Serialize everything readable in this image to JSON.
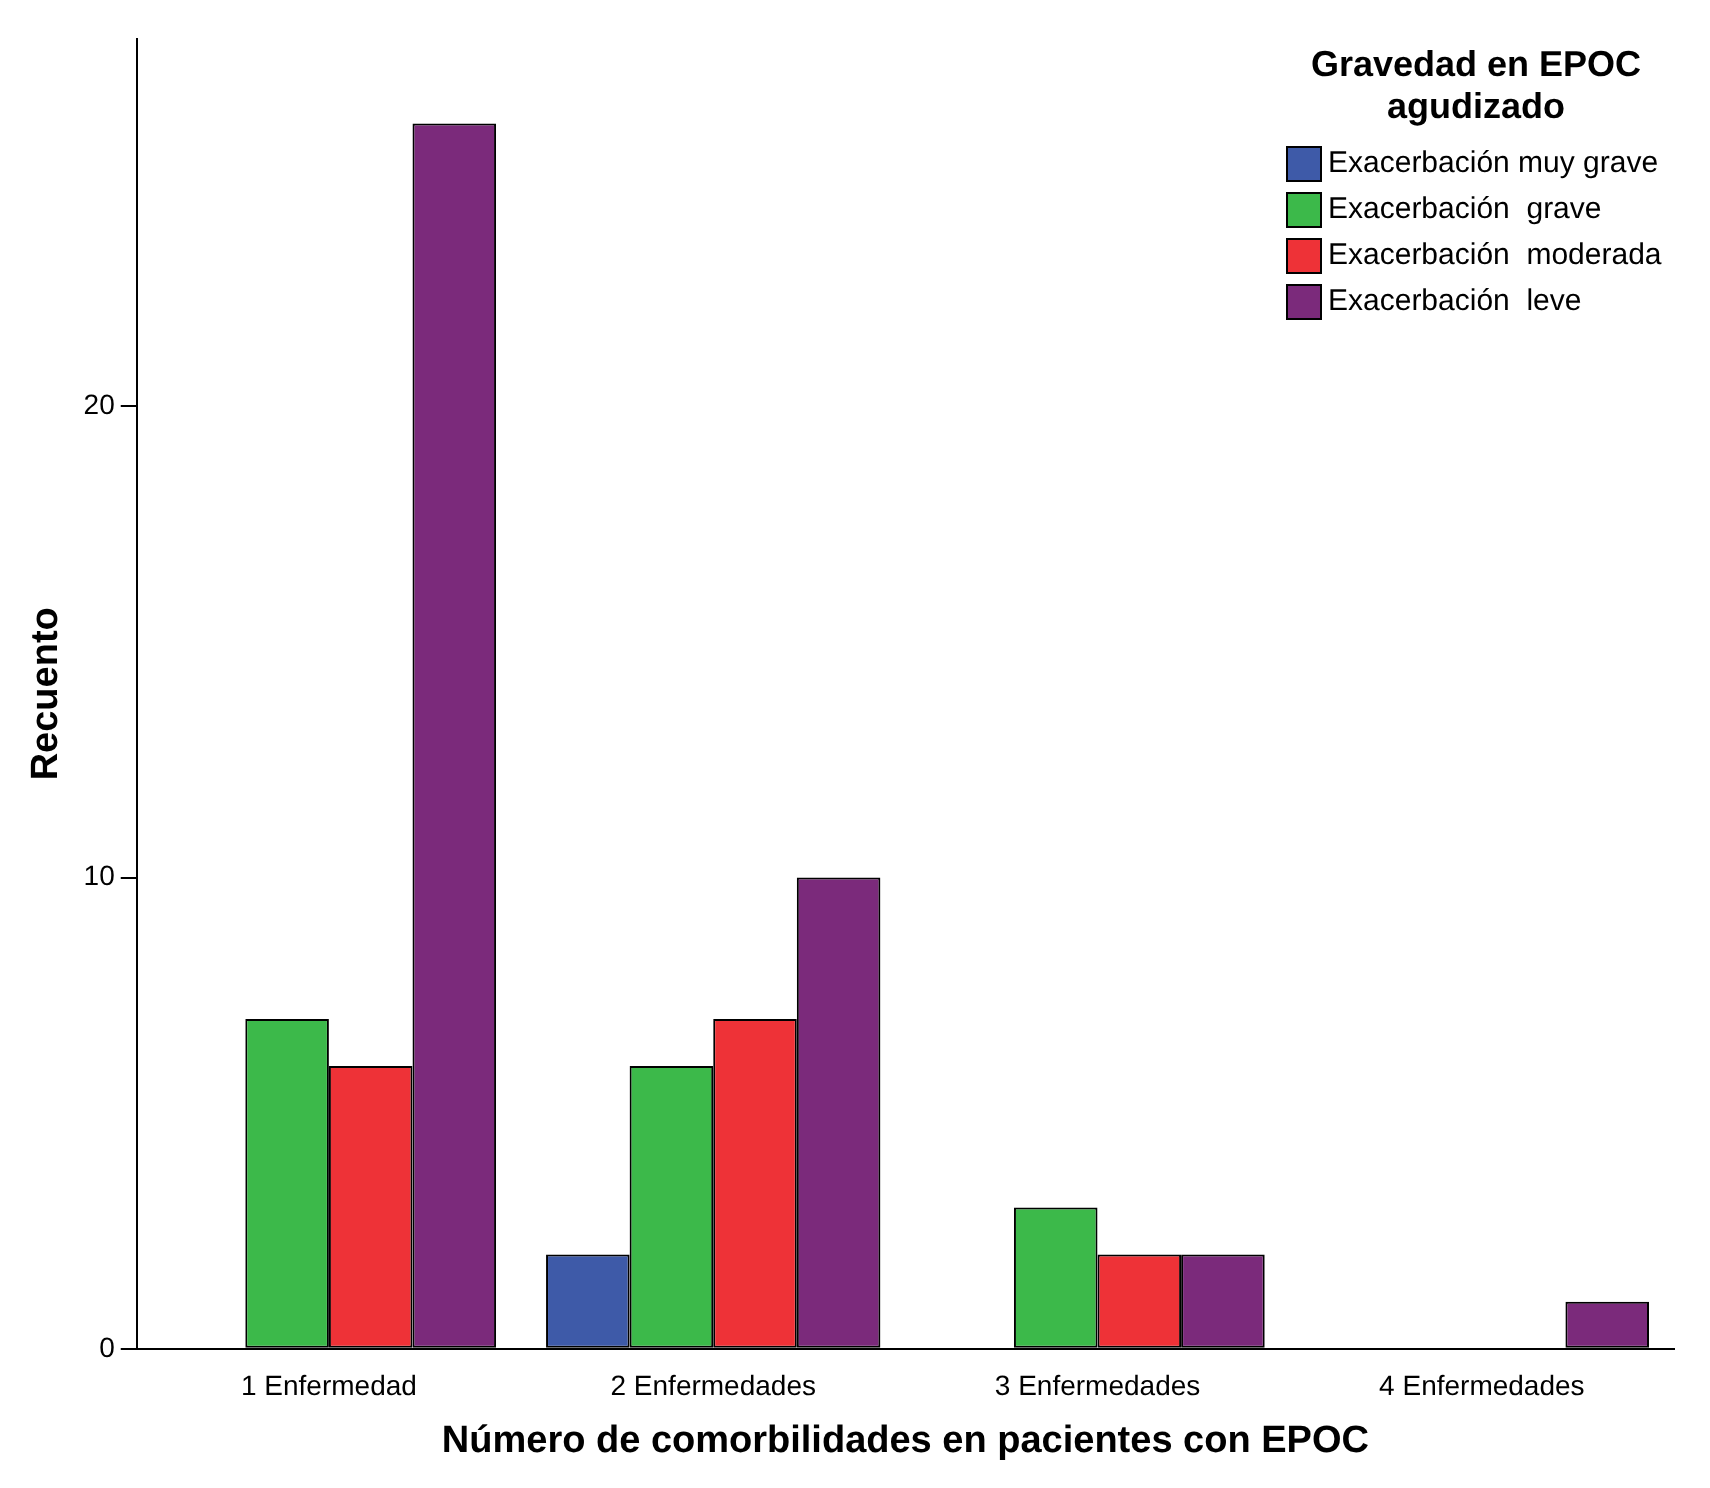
{
  "chart_data": {
    "type": "bar",
    "xlabel": "Número de comorbilidades en pacientes con EPOC",
    "ylabel": "Recuento",
    "legend_title": "Gravedad en EPOC agudizado",
    "categories": [
      "1 Enfermedad",
      "2 Enfermedades",
      "3 Enfermedades",
      "4 Enfermedades"
    ],
    "series": [
      {
        "name": "Exacerbación muy grave",
        "color": "#3e5aa8",
        "values": [
          0,
          2,
          0,
          0
        ]
      },
      {
        "name": "Exacerbación  grave",
        "color": "#3cb94a",
        "values": [
          7,
          6,
          3,
          0
        ]
      },
      {
        "name": "Exacerbación  moderada",
        "color": "#ee3237",
        "values": [
          6,
          7,
          2,
          0
        ]
      },
      {
        "name": "Exacerbación  leve",
        "color": "#7b2a7b",
        "values": [
          26,
          10,
          2,
          1
        ]
      }
    ],
    "ylim": [
      0,
      27.8
    ],
    "yticks": [
      0,
      10,
      20
    ],
    "grid": false,
    "legend": "top right"
  }
}
